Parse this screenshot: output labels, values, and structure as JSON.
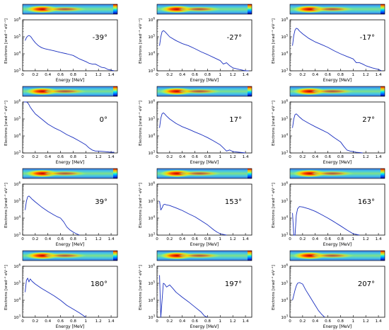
{
  "chart_data": {
    "type": "line",
    "layout": "4x3 grid of log-scale spectra",
    "shared": {
      "xlabel": "Energy [MeV]",
      "ylabel": "Electrons [srad⁻¹ eV⁻¹]",
      "xlim": [
        0,
        1.5
      ],
      "ylim": [
        1000,
        1000000
      ],
      "yscale": "log",
      "xticks": [
        0,
        0.2,
        0.4,
        0.6,
        0.8,
        1,
        1.2,
        1.4
      ],
      "xtick_labels": [
        "0",
        "0.2",
        "0.4",
        "0.6",
        "0.8",
        "1",
        "1.2",
        "1.4"
      ],
      "ytick_labels": [
        "10",
        "10",
        "10",
        "10"
      ],
      "ytick_exponents": [
        "3",
        "4",
        "5",
        "6"
      ],
      "line_color": "#1a2fbf",
      "heatmap_strip": true,
      "heatmap_colormap": "jet"
    },
    "panels": [
      {
        "angle_label": "-39°",
        "x": [
          0.04,
          0.06,
          0.08,
          0.1,
          0.12,
          0.14,
          0.16,
          0.2,
          0.25,
          0.3,
          0.35,
          0.4,
          0.5,
          0.6,
          0.7,
          0.8,
          0.9,
          1.0,
          1.05,
          1.1,
          1.15,
          1.2,
          1.25,
          1.3,
          1.35,
          1.4,
          1.45
        ],
        "values": [
          60000,
          90000,
          110000,
          120000,
          110000,
          90000,
          70000,
          45000,
          30000,
          23000,
          20000,
          18000,
          15000,
          12000,
          10000,
          8000,
          5000,
          3500,
          2800,
          2500,
          2500,
          2000,
          1600,
          1500,
          1200,
          1100,
          1000
        ]
      },
      {
        "angle_label": "-27°",
        "x": [
          0.04,
          0.06,
          0.08,
          0.1,
          0.12,
          0.15,
          0.2,
          0.3,
          0.4,
          0.5,
          0.6,
          0.7,
          0.8,
          0.9,
          1.0,
          1.05,
          1.1,
          1.15,
          1.2,
          1.3,
          1.4,
          1.45
        ],
        "values": [
          30000,
          100000,
          200000,
          230000,
          210000,
          160000,
          100000,
          60000,
          40000,
          30000,
          20000,
          13000,
          9000,
          6000,
          4000,
          2500,
          3000,
          2000,
          1500,
          1200,
          1000,
          1000
        ]
      },
      {
        "angle_label": "-17°",
        "x": [
          0.04,
          0.06,
          0.08,
          0.1,
          0.12,
          0.15,
          0.2,
          0.3,
          0.4,
          0.5,
          0.6,
          0.7,
          0.8,
          0.9,
          1.0,
          1.05,
          1.1,
          1.15,
          1.2,
          1.3,
          1.4,
          1.45
        ],
        "values": [
          30000,
          120000,
          250000,
          320000,
          300000,
          220000,
          150000,
          80000,
          50000,
          35000,
          24000,
          15000,
          10000,
          7000,
          5000,
          3000,
          3000,
          2500,
          2000,
          1500,
          1200,
          1000
        ]
      },
      {
        "angle_label": "0°",
        "x": [
          0.02,
          0.04,
          0.06,
          0.08,
          0.1,
          0.12,
          0.15,
          0.2,
          0.3,
          0.4,
          0.5,
          0.6,
          0.7,
          0.8,
          0.9,
          1.0,
          1.05,
          1.1,
          1.15,
          1.2,
          1.3,
          1.4,
          1.45
        ],
        "values": [
          1000000,
          1000000,
          1000000,
          900000,
          700000,
          500000,
          350000,
          200000,
          100000,
          50000,
          30000,
          20000,
          12000,
          8000,
          5000,
          3000,
          2000,
          1500,
          1300,
          1300,
          1200,
          1100,
          1100
        ]
      },
      {
        "angle_label": "17°",
        "x": [
          0.04,
          0.06,
          0.08,
          0.1,
          0.12,
          0.15,
          0.2,
          0.3,
          0.4,
          0.5,
          0.6,
          0.7,
          0.8,
          0.9,
          1.0,
          1.05,
          1.1,
          1.15,
          1.2,
          1.3,
          1.4
        ],
        "values": [
          30000,
          110000,
          200000,
          230000,
          200000,
          150000,
          100000,
          55000,
          35000,
          25000,
          17000,
          12000,
          8000,
          5000,
          3000,
          2000,
          1300,
          1500,
          1200,
          1100,
          1000
        ]
      },
      {
        "angle_label": "27°",
        "x": [
          0.04,
          0.06,
          0.08,
          0.1,
          0.12,
          0.15,
          0.2,
          0.3,
          0.4,
          0.5,
          0.6,
          0.7,
          0.75,
          0.8,
          0.85,
          0.9,
          0.95,
          1.0,
          1.05,
          1.1,
          1.15
        ],
        "values": [
          30000,
          100000,
          180000,
          200000,
          170000,
          130000,
          90000,
          55000,
          35000,
          23000,
          15000,
          8000,
          6000,
          4500,
          2500,
          1500,
          1300,
          1200,
          1100,
          1050,
          1000
        ]
      },
      {
        "angle_label": "39°",
        "x": [
          0.04,
          0.06,
          0.08,
          0.1,
          0.12,
          0.15,
          0.2,
          0.3,
          0.4,
          0.5,
          0.55,
          0.6,
          0.65,
          0.7,
          0.75,
          0.8,
          0.85,
          0.9
        ],
        "values": [
          30000,
          100000,
          180000,
          200000,
          170000,
          130000,
          90000,
          45000,
          25000,
          15000,
          12000,
          10000,
          6000,
          3000,
          2000,
          1500,
          1200,
          1000
        ]
      },
      {
        "angle_label": "153°",
        "x": [
          0.04,
          0.06,
          0.08,
          0.1,
          0.12,
          0.15,
          0.2,
          0.3,
          0.4,
          0.5,
          0.6,
          0.7,
          0.8,
          0.9,
          0.95,
          1.0,
          1.05,
          1.1
        ],
        "values": [
          100000,
          30000,
          40000,
          60000,
          65000,
          60000,
          55000,
          40000,
          28000,
          18000,
          12000,
          7000,
          4000,
          2000,
          1500,
          1200,
          1100,
          1000
        ]
      },
      {
        "angle_label": "163°",
        "x": [
          0.04,
          0.06,
          0.08,
          0.1,
          0.12,
          0.15,
          0.2,
          0.3,
          0.4,
          0.5,
          0.6,
          0.7,
          0.8,
          0.9,
          1.0,
          1.1
        ],
        "values": [
          20000,
          1000,
          1000,
          15000,
          35000,
          48000,
          45000,
          35000,
          25000,
          16000,
          10000,
          6000,
          3500,
          2000,
          1200,
          1000
        ]
      },
      {
        "angle_label": "180°",
        "x": [
          0.04,
          0.06,
          0.08,
          0.1,
          0.12,
          0.15,
          0.2,
          0.3,
          0.4,
          0.5,
          0.6,
          0.7,
          0.8,
          0.9,
          1.0
        ],
        "values": [
          30000,
          150000,
          200000,
          120000,
          180000,
          130000,
          90000,
          50000,
          30000,
          18000,
          10000,
          5000,
          3000,
          1800,
          1000
        ]
      },
      {
        "angle_label": "197°",
        "x": [
          0.04,
          0.06,
          0.08,
          0.1,
          0.12,
          0.15,
          0.2,
          0.25,
          0.3,
          0.4,
          0.5,
          0.6,
          0.7,
          0.75,
          0.8
        ],
        "values": [
          300000,
          1000,
          10000,
          100000,
          90000,
          60000,
          80000,
          50000,
          30000,
          15000,
          8000,
          4000,
          2000,
          1200,
          1000
        ]
      },
      {
        "angle_label": "207°",
        "x": [
          0.04,
          0.06,
          0.08,
          0.1,
          0.12,
          0.15,
          0.2,
          0.25,
          0.3,
          0.35,
          0.4,
          0.45,
          0.5,
          0.55
        ],
        "values": [
          10000,
          20000,
          40000,
          70000,
          100000,
          110000,
          90000,
          40000,
          20000,
          10000,
          5000,
          2500,
          1500,
          1000
        ]
      }
    ]
  }
}
